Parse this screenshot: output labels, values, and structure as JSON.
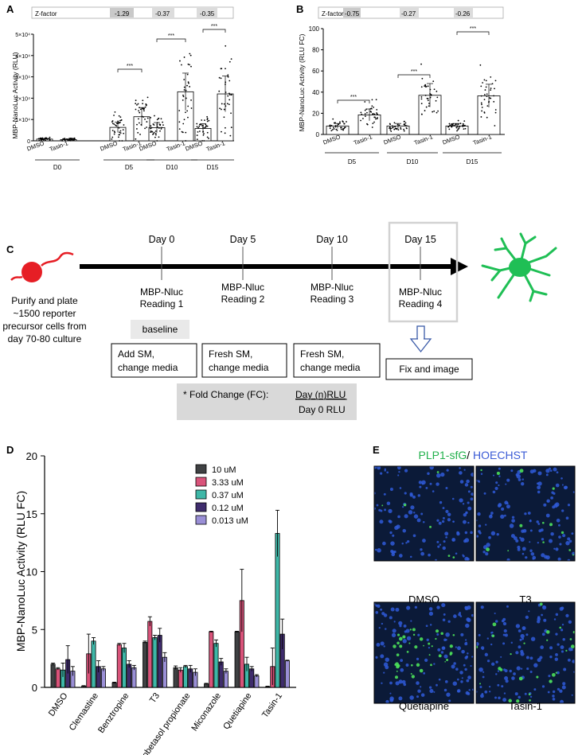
{
  "panels": {
    "A": {
      "letter": "A",
      "zfactor": {
        "label": "Z-factor",
        "values": [
          "-1.29",
          "-0.37",
          "-0.35"
        ]
      },
      "ylabel": "MBP-NanoLuc Activity (RLU)",
      "ytick_labels": [
        "0",
        "1×10⁴",
        "2×10⁴",
        "3×10⁴",
        "4×10⁴",
        "5×10⁴"
      ],
      "xtick_labels": [
        "DMSO",
        "Tasin-1",
        "DMSO",
        "Tasin-1",
        "DMSO",
        "Tasin-1",
        "DMSO",
        "Tasin-1"
      ],
      "groups": [
        "D0",
        "D5",
        "D10",
        "D15"
      ],
      "sig": [
        "***",
        "***",
        "***"
      ]
    },
    "B": {
      "letter": "B",
      "zfactor": {
        "label": "Z-factor",
        "values": [
          "-0.75",
          "-0.27",
          "-0.26"
        ]
      },
      "ylabel": "MBP-NanoLuc Activity (RLU FC)",
      "ytick_labels": [
        "0",
        "20",
        "40",
        "60",
        "80",
        "100"
      ],
      "xtick_labels": [
        "DMSO",
        "Tasin-1",
        "DMSO",
        "Tasin-1",
        "DMSO",
        "Tasin-1"
      ],
      "groups": [
        "D5",
        "D10",
        "D15"
      ],
      "sig": [
        "***",
        "***",
        "***"
      ]
    },
    "C": {
      "letter": "C",
      "cell_caption": [
        "Purify and plate",
        "~1500 reporter",
        "precursor cells from",
        "day 70-80 culture"
      ],
      "days": [
        "Day 0",
        "Day 5",
        "Day 10",
        "Day 15"
      ],
      "readings": [
        [
          "MBP-Nluc",
          "Reading 1"
        ],
        [
          "MBP-Nluc",
          "Reading 2"
        ],
        [
          "MBP-Nluc",
          "Reading 3"
        ],
        [
          "MBP-Nluc",
          "Reading 4"
        ]
      ],
      "baseline": "baseline",
      "steps": [
        [
          "Add SM,",
          "change media"
        ],
        [
          "Fresh SM,",
          "change media"
        ],
        [
          "Fresh SM,",
          "change media"
        ]
      ],
      "final_step": "Fix and image",
      "fc_prefix": "* Fold Change (FC): ",
      "fc_numerator": "Day (n)RLU",
      "fc_denominator": "Day 0 RLU"
    },
    "D": {
      "letter": "D"
    },
    "E": {
      "letter": "E",
      "title_green": "PLP1-sfG",
      "title_slash": "/ ",
      "title_blue": "HOECHST",
      "image_labels": [
        "DMSO",
        "T3",
        "Quetiapine",
        "Tasin-1"
      ]
    }
  },
  "chart_data": [
    {
      "type": "bar",
      "title": "",
      "ylabel": "MBP-NanoLuc Activity (RLU)",
      "categories": [
        "D0 DMSO",
        "D0 Tasin-1",
        "D5 DMSO",
        "D5 Tasin-1",
        "D10 DMSO",
        "D10 Tasin-1",
        "D15 DMSO",
        "D15 Tasin-1"
      ],
      "values": [
        800,
        600,
        6300,
        11300,
        6200,
        23000,
        5800,
        22000
      ],
      "ylim": [
        0,
        50000
      ]
    },
    {
      "type": "bar",
      "title": "",
      "ylabel": "MBP-NanoLuc Activity (RLU FC)",
      "categories": [
        "D5 DMSO",
        "D5 Tasin-1",
        "D10 DMSO",
        "D10 Tasin-1",
        "D15 DMSO",
        "D15 Tasin-1"
      ],
      "values": [
        8,
        18.5,
        8,
        37,
        8,
        36.5
      ],
      "ylim": [
        0,
        100
      ]
    },
    {
      "type": "bar",
      "title": "",
      "ylabel": "MBP-NanoLuc Activity (RLU FC)",
      "ylim": [
        0,
        20
      ],
      "yticks": [
        "0",
        "5",
        "10",
        "15",
        "20"
      ],
      "legend_position": "top-center",
      "categories": [
        "DMSO",
        "Clemastine",
        "Benztropine",
        "T3",
        "Clobetasol propionate",
        "Miconazole",
        "Quetiapine",
        "Tasin-1"
      ],
      "series": [
        {
          "name": "10 uM",
          "color": "#3f4143",
          "values": [
            2.0,
            0.1,
            0.4,
            3.9,
            1.7,
            0.3,
            4.8,
            0.05
          ],
          "err": [
            0.1,
            0.05,
            0.05,
            0.1,
            0.15,
            0.05,
            0.05,
            0.05
          ]
        },
        {
          "name": "3.33 uM",
          "color": "#d9537a",
          "values": [
            1.6,
            2.9,
            3.7,
            5.7,
            1.5,
            4.8,
            7.5,
            1.8
          ],
          "err": [
            0.1,
            1.7,
            0.1,
            0.4,
            0.2,
            0.05,
            2.7,
            1.6
          ]
        },
        {
          "name": "0.37 uM",
          "color": "#3eb7a7",
          "values": [
            1.5,
            4.0,
            3.4,
            4.3,
            1.8,
            3.8,
            2.0,
            13.3
          ],
          "err": [
            0.6,
            0.3,
            0.4,
            0.2,
            0.1,
            0.3,
            0.6,
            2.0
          ]
        },
        {
          "name": "0.12 uM",
          "color": "#3f2c6d",
          "values": [
            2.4,
            1.8,
            2.0,
            4.5,
            1.6,
            2.2,
            1.6,
            4.6
          ],
          "err": [
            1.2,
            0.5,
            0.3,
            0.6,
            0.3,
            0.3,
            0.2,
            1.3
          ]
        },
        {
          "name": "0.013 uM",
          "color": "#9a8fd6",
          "values": [
            1.4,
            1.6,
            1.7,
            2.6,
            1.3,
            1.4,
            1.0,
            2.3
          ],
          "err": [
            0.4,
            0.2,
            0.2,
            0.4,
            0.3,
            0.2,
            0.1,
            0.05
          ]
        }
      ]
    }
  ]
}
